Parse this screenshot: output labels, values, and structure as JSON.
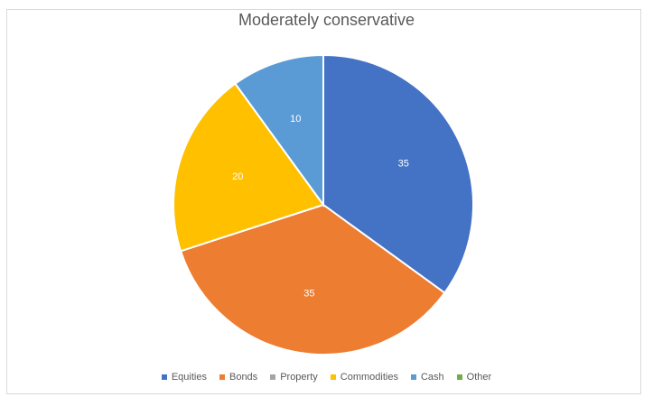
{
  "chart_data": {
    "type": "pie",
    "title": "Moderately conservative",
    "categories": [
      "Equities",
      "Bonds",
      "Property",
      "Commodities",
      "Cash",
      "Other"
    ],
    "values": [
      35,
      35,
      0,
      20,
      10,
      0
    ],
    "data_labels": [
      "35",
      "35",
      "",
      "20",
      "10",
      ""
    ],
    "colors": [
      "#4472C4",
      "#ED7D31",
      "#A5A5A5",
      "#FFC000",
      "#5B9BD5",
      "#70AD47"
    ],
    "legend_position": "bottom",
    "start_angle": "top, clockwise"
  }
}
